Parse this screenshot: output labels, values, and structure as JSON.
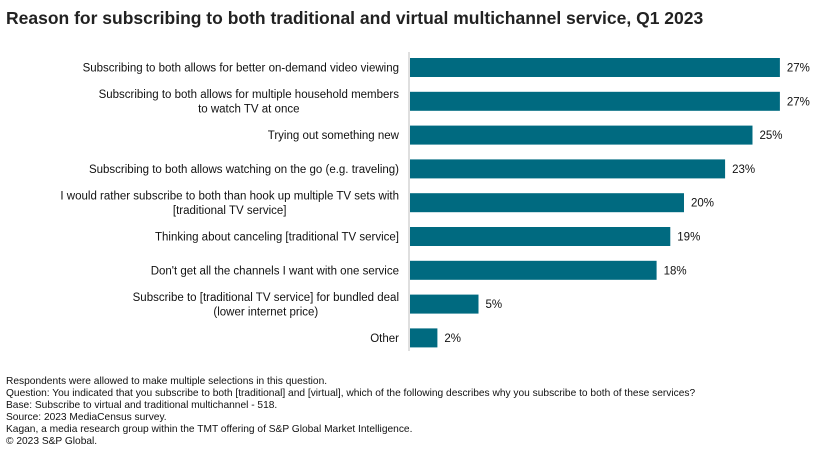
{
  "colors": {
    "bar": "#006a80",
    "axis": "#bfbfbf"
  },
  "chart_data": {
    "type": "bar",
    "orientation": "horizontal",
    "title": "Reason for subscribing to both traditional and virtual multichannel service, Q1 2023",
    "categories": [
      "Subscribing to both allows for better on-demand video viewing",
      "Subscribing to both allows for multiple household members to watch TV at once",
      "Trying out something new",
      "Subscribing to both allows watching on the go (e.g. traveling)",
      "I would rather subscribe to both than hook up multiple TV sets with [traditional TV service]",
      "Thinking about canceling [traditional TV service]",
      "Don't get all the channels I want with one service",
      "Subscribe to [traditional TV service] for bundled deal (lower internet price)",
      "Other"
    ],
    "category_lines": [
      [
        "Subscribing to both allows for better on-demand video viewing"
      ],
      [
        "Subscribing to both allows for multiple household members",
        "to watch TV at once"
      ],
      [
        "Trying out something new"
      ],
      [
        "Subscribing to both allows watching on the go (e.g. traveling)"
      ],
      [
        "I would rather subscribe to both than hook up multiple TV sets with",
        "[traditional TV service]"
      ],
      [
        "Thinking about canceling [traditional TV service]"
      ],
      [
        "Don't get all the channels I want with one service"
      ],
      [
        "Subscribe to [traditional TV service] for bundled deal",
        "(lower internet price)"
      ],
      [
        "Other"
      ]
    ],
    "values": [
      27,
      27,
      25,
      23,
      20,
      19,
      18,
      5,
      2
    ],
    "value_labels": [
      "27%",
      "27%",
      "25%",
      "23%",
      "20%",
      "19%",
      "18%",
      "5%",
      "2%"
    ],
    "xlim": [
      0,
      27.3
    ],
    "grid": false,
    "legend": false
  },
  "footnotes": [
    "Respondents were allowed to make multiple selections in this question.",
    "Question: You indicated that you subscribe to both [traditional] and [virtual], which of the following describes why you subscribe to both of these services?",
    "Base: Subscribe to virtual and traditional multichannel - 518.",
    "Source: 2023 MediaCensus survey.",
    "Kagan, a media research group within the TMT offering of S&P Global Market Intelligence.",
    "© 2023 S&P Global."
  ]
}
